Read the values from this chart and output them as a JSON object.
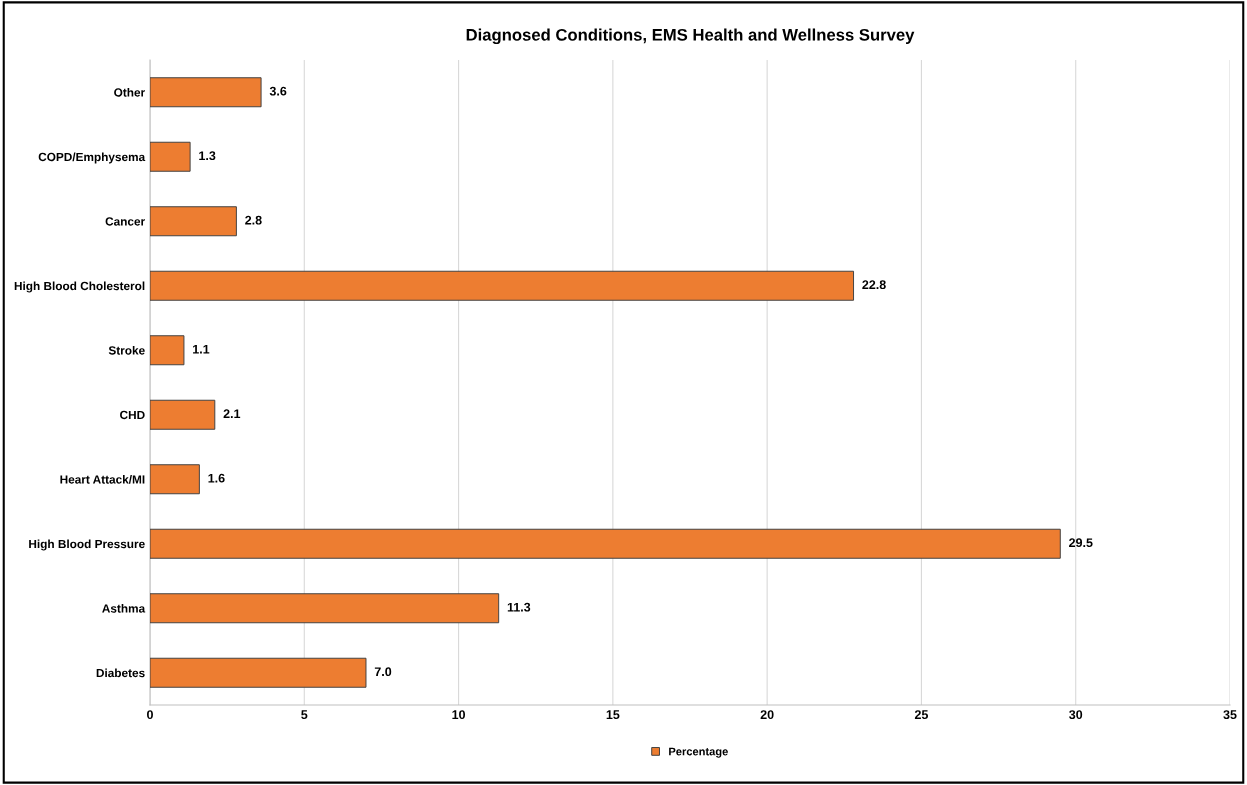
{
  "chart_data": {
    "type": "bar",
    "orientation": "horizontal",
    "title": "Diagnosed Conditions, EMS Health and Wellness Survey",
    "categories": [
      "Other",
      "COPD/Emphysema",
      "Cancer",
      "High Blood Cholesterol",
      "Stroke",
      "CHD",
      "Heart Attack/MI",
      "High Blood Pressure",
      "Asthma",
      "Diabetes"
    ],
    "series": [
      {
        "name": "Percentage",
        "color": "#ed7d31",
        "values": [
          3.6,
          1.3,
          2.8,
          22.8,
          1.1,
          2.1,
          1.6,
          29.5,
          11.3,
          7.0
        ],
        "value_labels": [
          "3.6",
          "1.3",
          "2.8",
          "22.8",
          "1.1",
          "2.1",
          "1.6",
          "29.5",
          "11.3",
          "7.0"
        ]
      }
    ],
    "xlim": [
      0,
      35
    ],
    "xticks": [
      0,
      5,
      10,
      15,
      20,
      25,
      30,
      35
    ],
    "grid": "x",
    "legend": "bottom"
  }
}
